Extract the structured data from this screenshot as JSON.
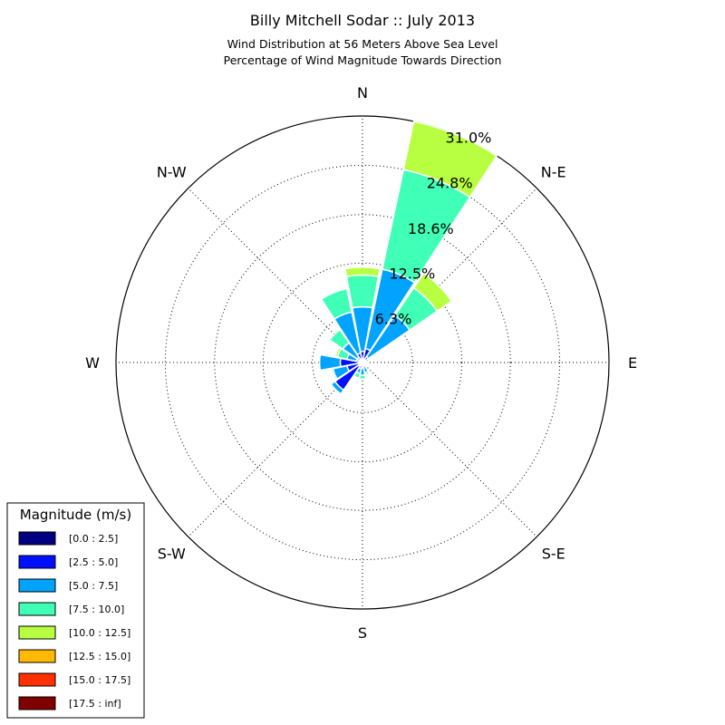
{
  "chart_data": {
    "type": "windrose",
    "title": "Billy Mitchell Sodar :: July 2013",
    "subtitle_lines": [
      "Wind Distribution at 56 Meters Above Sea Level",
      "Percentage of Wind Magnitude Towards Direction"
    ],
    "directions": [
      "N",
      "N-E",
      "E",
      "S-E",
      "S",
      "S-W",
      "W",
      "N-W"
    ],
    "radial_max": 31.0,
    "radial_ticks": [
      6.3,
      12.5,
      18.6,
      24.8,
      31.0
    ],
    "radial_tick_labels": [
      "6.3%",
      "12.5%",
      "18.6%",
      "24.8%",
      "31.0%"
    ],
    "legend": {
      "title": "Magnitude (m/s)",
      "placement": "bottom-left",
      "entries": [
        {
          "label": "[0.0 : 2.5]",
          "color": "#000080"
        },
        {
          "label": "[2.5 : 5.0]",
          "color": "#0010ff"
        },
        {
          "label": "[5.0 : 7.5]",
          "color": "#00a4ff"
        },
        {
          "label": "[7.5 : 10.0]",
          "color": "#40ffb7"
        },
        {
          "label": "[10.0 : 12.5]",
          "color": "#b7ff40"
        },
        {
          "label": "[12.5 : 15.0]",
          "color": "#ffb900"
        },
        {
          "label": "[15.0 : 17.5]",
          "color": "#ff3000"
        },
        {
          "label": "[17.5 : inf]",
          "color": "#800000"
        }
      ]
    },
    "sectors": [
      {
        "direction_deg": 0,
        "cumulative": [
          0.3,
          1.4,
          7.0,
          11.0,
          12.0
        ]
      },
      {
        "direction_deg": 22.5,
        "cumulative": [
          0.3,
          1.8,
          12.0,
          24.8,
          31.0
        ]
      },
      {
        "direction_deg": 45,
        "cumulative": [
          0.2,
          0.9,
          7.2,
          11.4,
          13.6
        ]
      },
      {
        "direction_deg": 67.5,
        "cumulative": [
          0.1,
          0.4,
          0.8
        ]
      },
      {
        "direction_deg": 90,
        "cumulative": [
          0.1,
          0.3,
          0.7
        ]
      },
      {
        "direction_deg": 112.5,
        "cumulative": [
          0.1,
          0.3,
          0.6
        ]
      },
      {
        "direction_deg": 135,
        "cumulative": [
          0.1,
          0.3,
          0.5
        ]
      },
      {
        "direction_deg": 157.5,
        "cumulative": [
          0.1,
          0.4,
          1.3,
          1.6,
          1.8
        ]
      },
      {
        "direction_deg": 180,
        "cumulative": [
          0.2,
          0.7,
          1.6,
          2.1
        ]
      },
      {
        "direction_deg": 202.5,
        "cumulative": [
          0.2,
          0.8,
          1.4,
          2.0
        ]
      },
      {
        "direction_deg": 225,
        "cumulative": [
          0.6,
          4.2,
          4.8
        ]
      },
      {
        "direction_deg": 247.5,
        "cumulative": [
          0.4,
          2.0,
          3.8,
          4.0
        ]
      },
      {
        "direction_deg": 270,
        "cumulative": [
          0.5,
          2.8,
          5.4
        ]
      },
      {
        "direction_deg": 292.5,
        "cumulative": [
          0.3,
          0.8,
          2.0,
          3.2,
          3.5
        ]
      },
      {
        "direction_deg": 315,
        "cumulative": [
          0.2,
          0.8,
          3.0,
          5.0
        ]
      },
      {
        "direction_deg": 337.5,
        "cumulative": [
          0.3,
          1.2,
          6.5,
          9.5
        ]
      }
    ]
  }
}
